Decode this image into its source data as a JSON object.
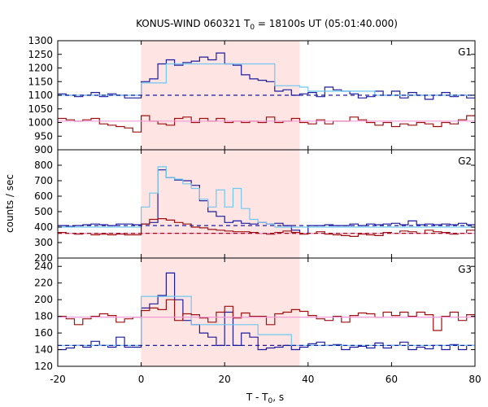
{
  "chart_data": {
    "type": "line",
    "title_main": "KONUS-WIND 060321 T",
    "title_sub": "0",
    "title_rest": " = 18100s UT (05:01:40.000)",
    "xlabel_main": "T - T",
    "xlabel_sub": "0",
    "xlabel_rest": ", s",
    "ylabel": "counts / sec",
    "xlim": [
      -20,
      80
    ],
    "xticks": [
      -20,
      0,
      20,
      40,
      60,
      80
    ],
    "highlight": {
      "from": 0,
      "to": 38,
      "color": "#ffe4e4"
    },
    "colors": {
      "blue": "#1c1ca0",
      "cyan": "#6fc8ef",
      "red": "#9e1010",
      "pink": "#f59ad8"
    },
    "bin_width": 2,
    "bins_start": -20,
    "panels": [
      {
        "label": "G1",
        "ylim": [
          900,
          1300
        ],
        "yticks": [
          900,
          950,
          1000,
          1050,
          1100,
          1150,
          1200,
          1250,
          1300
        ],
        "series": [
          {
            "color": "blue",
            "values": [
              1105,
              1100,
              1095,
              1100,
              1110,
              1095,
              1105,
              1100,
              1090,
              1090,
              1150,
              1160,
              1215,
              1230,
              1210,
              1220,
              1225,
              1240,
              1230,
              1255,
              1215,
              1210,
              1175,
              1160,
              1155,
              1150,
              1115,
              1120,
              1100,
              1105,
              1110,
              1095,
              1130,
              1120,
              1115,
              1105,
              1090,
              1095,
              1115,
              1100,
              1115,
              1090,
              1110,
              1100,
              1085,
              1100,
              1110,
              1095,
              1100,
              1090
            ]
          },
          {
            "color": "cyan",
            "steps": [
              [
                -20,
                1100
              ],
              [
                0,
                1145
              ],
              [
                6,
                1215
              ],
              [
                32,
                1135
              ],
              [
                38,
                1130
              ],
              [
                40,
                1115
              ],
              [
                56,
                1100
              ],
              [
                80,
                1100
              ]
            ]
          },
          {
            "color": "red",
            "values": [
              1015,
              1010,
              1005,
              1010,
              1015,
              995,
              990,
              985,
              980,
              965,
              1025,
              1005,
              995,
              990,
              1015,
              1020,
              1000,
              1015,
              1005,
              1015,
              1000,
              1005,
              1000,
              1005,
              1000,
              1020,
              1000,
              1005,
              1015,
              1000,
              995,
              1010,
              995,
              1005,
              1005,
              1020,
              1010,
              1000,
              990,
              1000,
              985,
              995,
              990,
              1000,
              995,
              985,
              1000,
              995,
              1010,
              1025
            ]
          },
          {
            "color": "pink",
            "level": 1005
          },
          {
            "color": "blue",
            "level": 1100,
            "dashed": true
          }
        ]
      },
      {
        "label": "G2",
        "ylim": [
          200,
          900
        ],
        "yticks": [
          200,
          300,
          400,
          500,
          600,
          700,
          800
        ],
        "series": [
          {
            "color": "blue",
            "values": [
              410,
              405,
              410,
              415,
              420,
              415,
              410,
              420,
              420,
              415,
              420,
              430,
              770,
              720,
              705,
              700,
              670,
              570,
              500,
              470,
              430,
              440,
              425,
              420,
              430,
              420,
              425,
              410,
              380,
              360,
              410,
              410,
              415,
              410,
              410,
              420,
              410,
              420,
              415,
              420,
              425,
              415,
              440,
              415,
              420,
              415,
              420,
              415,
              425,
              415
            ]
          },
          {
            "color": "cyan",
            "values": [
              400,
              400,
              400,
              400,
              400,
              400,
              400,
              400,
              400,
              400,
              530,
              620,
              790,
              720,
              710,
              680,
              650,
              580,
              530,
              640,
              530,
              650,
              520,
              450,
              430,
              420,
              400,
              400,
              400,
              400,
              400,
              400,
              400,
              400,
              400,
              400,
              400,
              400,
              400,
              400,
              400,
              400,
              400,
              400,
              400,
              400,
              400,
              400,
              400,
              400
            ]
          },
          {
            "color": "red",
            "values": [
              365,
              360,
              355,
              360,
              350,
              355,
              350,
              355,
              350,
              350,
              420,
              450,
              455,
              445,
              430,
              420,
              400,
              395,
              385,
              380,
              375,
              370,
              370,
              365,
              360,
              355,
              365,
              375,
              365,
              355,
              360,
              370,
              355,
              350,
              345,
              340,
              355,
              350,
              345,
              365,
              360,
              375,
              370,
              360,
              380,
              370,
              365,
              355,
              360,
              380
            ]
          },
          {
            "color": "pink",
            "level": 360
          },
          {
            "color": "red",
            "level": 360,
            "dashed": true
          },
          {
            "color": "blue",
            "level": 410,
            "dashed": true
          }
        ]
      },
      {
        "label": "G3",
        "ylim": [
          120,
          250
        ],
        "yticks": [
          120,
          140,
          160,
          180,
          200,
          220,
          240
        ],
        "series": [
          {
            "color": "blue",
            "values": [
              140,
              142,
              145,
              143,
              150,
              145,
              143,
              155,
              143,
              143,
              190,
              195,
              205,
              232,
              200,
              175,
              170,
              160,
              155,
              145,
              185,
              145,
              160,
              155,
              140,
              142,
              143,
              145,
              140,
              143,
              147,
              149,
              145,
              146,
              140,
              143,
              144,
              142,
              148,
              142,
              145,
              149,
              140,
              143,
              141,
              145,
              140,
              146,
              140,
              145
            ]
          },
          {
            "color": "cyan",
            "steps": [
              [
                -20,
                145
              ],
              [
                0,
                145
              ],
              [
                0,
                204
              ],
              [
                12,
                170
              ],
              [
                28,
                158
              ],
              [
                36,
                145
              ],
              [
                80,
                145
              ]
            ]
          },
          {
            "color": "red",
            "values": [
              180,
              177,
              170,
              177,
              180,
              183,
              181,
              173,
              177,
              179,
              187,
              190,
              188,
              200,
              175,
              183,
              182,
              178,
              173,
              185,
              192,
              178,
              184,
              180,
              180,
              170,
              183,
              185,
              188,
              186,
              181,
              177,
              175,
              180,
              173,
              181,
              184,
              183,
              179,
              185,
              181,
              185,
              180,
              185,
              182,
              163,
              180,
              185,
              175,
              182
            ]
          },
          {
            "color": "pink",
            "level": 179
          },
          {
            "color": "blue",
            "level": 145,
            "dashed": true
          }
        ]
      }
    ]
  }
}
